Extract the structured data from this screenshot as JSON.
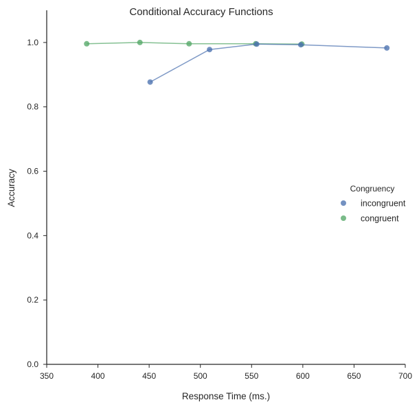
{
  "chart_data": {
    "type": "line",
    "title": "Conditional Accuracy Functions",
    "xlabel": "Response Time (ms.)",
    "ylabel": "Accuracy",
    "xlim": [
      350,
      700
    ],
    "ylim": [
      0.0,
      1.1
    ],
    "xticks": [
      350,
      400,
      450,
      500,
      550,
      600,
      650,
      700
    ],
    "yticks": [
      0.0,
      0.2,
      0.4,
      0.6,
      0.8,
      1.0
    ],
    "xtick_labels": [
      "350",
      "400",
      "450",
      "500",
      "550",
      "600",
      "650",
      "700"
    ],
    "ytick_labels": [
      "0.0",
      "0.2",
      "0.4",
      "0.6",
      "0.8",
      "1.0"
    ],
    "grid": false,
    "legend": {
      "title": "Congruency",
      "placement": "center-right, outside plot area"
    },
    "series": [
      {
        "name": "incongruent",
        "color": "#4c72b0",
        "x": [
          451,
          509,
          555,
          598,
          682
        ],
        "y": [
          0.877,
          0.978,
          0.995,
          0.993,
          0.983
        ]
      },
      {
        "name": "congruent",
        "color": "#55a868",
        "x": [
          389,
          441,
          489,
          554,
          599
        ],
        "y": [
          0.996,
          1.0,
          0.996,
          0.996,
          0.995
        ]
      }
    ]
  }
}
